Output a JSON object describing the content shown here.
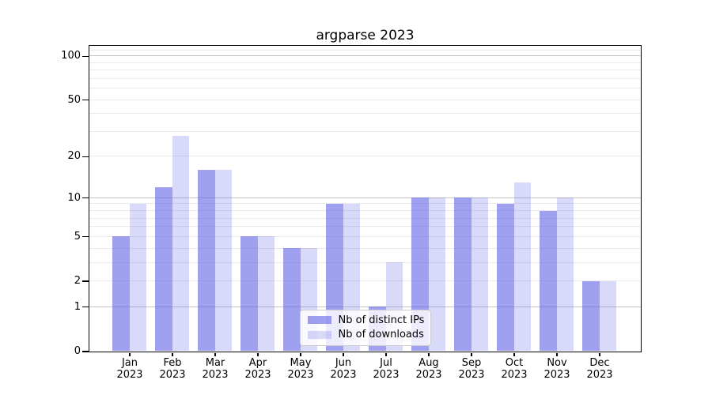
{
  "figure": {
    "background": "#ffffff"
  },
  "chart_data": {
    "type": "bar",
    "title": "argparse 2023",
    "categories": [
      {
        "month": "Jan",
        "year": "2023"
      },
      {
        "month": "Feb",
        "year": "2023"
      },
      {
        "month": "Mar",
        "year": "2023"
      },
      {
        "month": "Apr",
        "year": "2023"
      },
      {
        "month": "May",
        "year": "2023"
      },
      {
        "month": "Jun",
        "year": "2023"
      },
      {
        "month": "Jul",
        "year": "2023"
      },
      {
        "month": "Aug",
        "year": "2023"
      },
      {
        "month": "Sep",
        "year": "2023"
      },
      {
        "month": "Oct",
        "year": "2023"
      },
      {
        "month": "Nov",
        "year": "2023"
      },
      {
        "month": "Dec",
        "year": "2023"
      }
    ],
    "series": [
      {
        "name": "Nb of distinct IPs",
        "color": "rgba(102,102,230,0.62)",
        "values": [
          5,
          12,
          16,
          5,
          4,
          9,
          1,
          10,
          10,
          9,
          8,
          2
        ]
      },
      {
        "name": "Nb of downloads",
        "color": "rgba(102,102,230,0.25)",
        "values": [
          9,
          28,
          16,
          5,
          4,
          9,
          3,
          10,
          10,
          13,
          10,
          2
        ]
      }
    ],
    "y_axis": {
      "scale": "symlog",
      "ticks": [
        0,
        1,
        2,
        5,
        10,
        20,
        50,
        100
      ],
      "major_gridlines": [
        1,
        10,
        100
      ],
      "minor_gridlines": [
        2,
        3,
        4,
        5,
        6,
        7,
        8,
        9,
        20,
        30,
        40,
        50,
        60,
        70,
        80,
        90,
        110
      ],
      "range": [
        0,
        118
      ]
    },
    "grid": true,
    "legend": {
      "position": "lower center"
    }
  },
  "colors": {
    "major_grid": "#c3c3c3",
    "minor_grid": "#e9e9e9",
    "spine": "#000000",
    "text": "#000000",
    "legend_border": "#cccccc",
    "legend_bg": "rgba(255,255,255,0.8)"
  }
}
